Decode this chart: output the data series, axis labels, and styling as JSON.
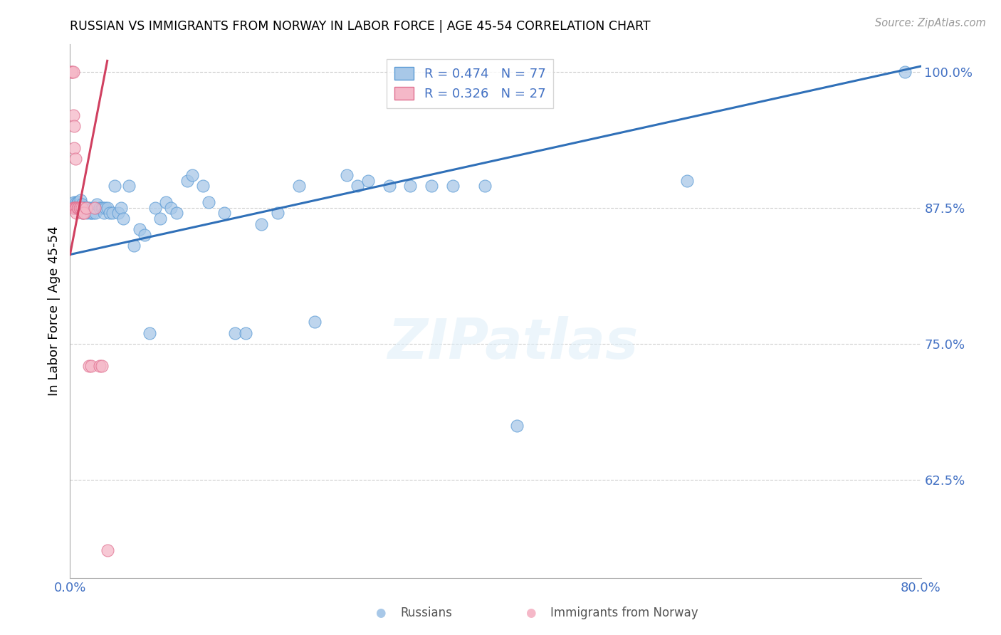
{
  "title": "RUSSIAN VS IMMIGRANTS FROM NORWAY IN LABOR FORCE | AGE 45-54 CORRELATION CHART",
  "source": "Source: ZipAtlas.com",
  "ylabel": "In Labor Force | Age 45-54",
  "xlim": [
    0.0,
    0.8
  ],
  "ylim": [
    0.535,
    1.025
  ],
  "yticks": [
    0.625,
    0.75,
    0.875,
    1.0
  ],
  "ytick_labels": [
    "62.5%",
    "75.0%",
    "87.5%",
    "100.0%"
  ],
  "xticks": [
    0.0,
    0.1,
    0.2,
    0.3,
    0.4,
    0.5,
    0.6,
    0.7,
    0.8
  ],
  "xtick_labels": [
    "0.0%",
    "",
    "",
    "",
    "",
    "",
    "",
    "",
    "80.0%"
  ],
  "blue_color": "#a8c8e8",
  "pink_color": "#f5b8c8",
  "blue_edge_color": "#5b9bd5",
  "pink_edge_color": "#e07090",
  "blue_line_color": "#3070b8",
  "pink_line_color": "#d04060",
  "axis_color": "#4472c4",
  "legend_R_blue": "R = 0.474",
  "legend_N_blue": "N = 77",
  "legend_R_pink": "R = 0.326",
  "legend_N_pink": "N = 27",
  "watermark": "ZIPatlas",
  "blue_scatter_x": [
    0.003,
    0.004,
    0.004,
    0.005,
    0.005,
    0.006,
    0.006,
    0.007,
    0.007,
    0.008,
    0.008,
    0.009,
    0.009,
    0.01,
    0.01,
    0.011,
    0.011,
    0.012,
    0.012,
    0.013,
    0.013,
    0.014,
    0.015,
    0.016,
    0.017,
    0.018,
    0.019,
    0.02,
    0.021,
    0.022,
    0.023,
    0.024,
    0.025,
    0.028,
    0.03,
    0.031,
    0.032,
    0.033,
    0.035,
    0.037,
    0.04,
    0.042,
    0.045,
    0.048,
    0.05,
    0.055,
    0.06,
    0.065,
    0.07,
    0.075,
    0.08,
    0.085,
    0.09,
    0.095,
    0.1,
    0.11,
    0.115,
    0.125,
    0.13,
    0.145,
    0.155,
    0.165,
    0.18,
    0.195,
    0.215,
    0.23,
    0.26,
    0.27,
    0.28,
    0.3,
    0.32,
    0.34,
    0.36,
    0.39,
    0.42,
    0.58,
    0.785
  ],
  "blue_scatter_y": [
    0.875,
    0.88,
    0.875,
    0.875,
    0.875,
    0.875,
    0.88,
    0.88,
    0.875,
    0.875,
    0.88,
    0.875,
    0.878,
    0.875,
    0.882,
    0.875,
    0.878,
    0.875,
    0.87,
    0.875,
    0.875,
    0.875,
    0.875,
    0.87,
    0.875,
    0.875,
    0.87,
    0.87,
    0.875,
    0.87,
    0.875,
    0.87,
    0.878,
    0.875,
    0.875,
    0.875,
    0.87,
    0.875,
    0.875,
    0.87,
    0.87,
    0.895,
    0.87,
    0.875,
    0.865,
    0.895,
    0.84,
    0.855,
    0.85,
    0.76,
    0.875,
    0.865,
    0.88,
    0.875,
    0.87,
    0.9,
    0.905,
    0.895,
    0.88,
    0.87,
    0.76,
    0.76,
    0.86,
    0.87,
    0.895,
    0.77,
    0.905,
    0.895,
    0.9,
    0.895,
    0.895,
    0.895,
    0.895,
    0.895,
    0.675,
    0.9,
    1.0
  ],
  "pink_scatter_x": [
    0.001,
    0.002,
    0.003,
    0.003,
    0.003,
    0.004,
    0.004,
    0.004,
    0.005,
    0.005,
    0.005,
    0.006,
    0.006,
    0.007,
    0.008,
    0.009,
    0.01,
    0.011,
    0.012,
    0.013,
    0.015,
    0.018,
    0.02,
    0.023,
    0.028,
    0.03,
    0.035
  ],
  "pink_scatter_y": [
    1.0,
    1.0,
    1.0,
    0.96,
    0.875,
    0.95,
    0.93,
    0.875,
    0.92,
    0.875,
    0.875,
    0.875,
    0.87,
    0.875,
    0.875,
    0.875,
    0.875,
    0.875,
    0.87,
    0.87,
    0.875,
    0.73,
    0.73,
    0.875,
    0.73,
    0.73,
    0.56
  ],
  "blue_trendline_x": [
    0.0,
    0.8
  ],
  "blue_trendline_y": [
    0.832,
    1.005
  ],
  "pink_trendline_x": [
    0.0,
    0.035
  ],
  "pink_trendline_y": [
    0.832,
    1.01
  ]
}
